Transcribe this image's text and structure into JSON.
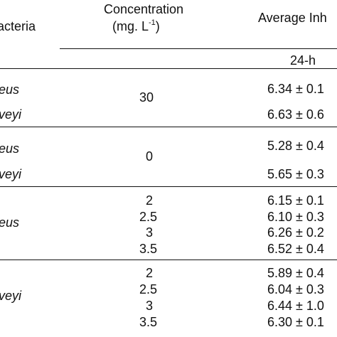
{
  "header": {
    "col_bacteria": "acteria",
    "col_concentration_line1": "Concentration",
    "col_concentration_unit": "(mg. L",
    "col_concentration_exp": "-1",
    "col_concentration_close": ")",
    "col_average": "Average Inh",
    "sub_24h": "24-h"
  },
  "rows": [
    {
      "bacteria": "eus",
      "value": "6.34 ± 0.1"
    },
    {
      "bacteria": "veyi",
      "value": "6.63 ± 0.6"
    },
    {
      "bacteria": "eus",
      "value": "5.28 ± 0.4"
    },
    {
      "bacteria": "veyi",
      "value": "5.65 ± 0.3"
    },
    {
      "value": "6.15 ± 0.1"
    },
    {
      "value": "6.10 ± 0.3"
    },
    {
      "value": "6.26 ± 0.2"
    },
    {
      "value": "6.52 ± 0.4"
    },
    {
      "value": "5.89 ± 0.4"
    },
    {
      "value": "6.04 ± 0.3"
    },
    {
      "value": "6.44 ± 1.0"
    },
    {
      "value": "6.30 ± 0.1"
    }
  ],
  "group_labels": {
    "g3_bacteria": "eus",
    "g4_bacteria": "veyi"
  },
  "concentrations": {
    "g1": "30",
    "g2": "0",
    "g3": [
      "2",
      "2.5",
      "3",
      "3.5"
    ],
    "g4": [
      "2",
      "2.5",
      "3",
      "3.5"
    ]
  }
}
